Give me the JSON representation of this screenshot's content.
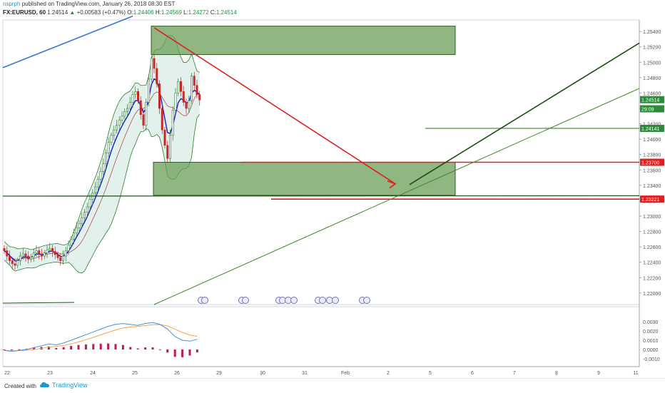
{
  "header": {
    "author": "nsprph",
    "published": " published on TradingView.com, January 26, 2018 08:30 EST",
    "symbol": "FX:EURUSD, 60",
    "last": "1.24514",
    "change": "+0.00583 (+0.47%)",
    "o_label": "O:",
    "o": "1.24406",
    "h_label": "H:",
    "h": "1.24569",
    "l_label": "L:",
    "l": "1.24272",
    "c_label": "C:",
    "c": "1.24514"
  },
  "footer": {
    "created": "Created with",
    "brand": "TradingView"
  },
  "colors": {
    "up": "#2e7d32",
    "down": "#c62828",
    "bb": "#2e7d32",
    "ma": "#1a1ad6",
    "zone": "#6b9e58",
    "red": "#e01e1e",
    "darkgreen": "#1b4d12",
    "green": "#3a8a26",
    "blue": "#3a74d8",
    "macd": "#4a90d9",
    "signal": "#f5a04a",
    "hist": "#c2185b",
    "label_green": "#2e8b3a"
  },
  "chart_data": [
    {
      "type": "candlestick",
      "title": "FX:EURUSD, 60",
      "x_ticks": [
        "22",
        "23",
        "24",
        "25",
        "26",
        "29",
        "30",
        "31",
        "Feb",
        "2",
        "5",
        "6",
        "7",
        "8",
        "9",
        "11"
      ],
      "y_ticks": [
        "1.25400",
        "1.25200",
        "1.25000",
        "1.24800",
        "1.24600",
        "1.24400",
        "1.24200",
        "1.24000",
        "1.23800",
        "1.23600",
        "1.23400",
        "1.23200",
        "1.23000",
        "1.22800",
        "1.22600",
        "1.22400",
        "1.22200",
        "1.22000"
      ],
      "ylim": [
        1.2185,
        1.2555
      ],
      "price_labels": [
        {
          "text": "1.24514",
          "value": 1.24514,
          "color": "#2e8b3a"
        },
        {
          "text": "29:09",
          "value": 1.24395,
          "color": "#2e8b3a"
        },
        {
          "text": "1.24141",
          "value": 1.24141,
          "color": "#2e8b3a"
        },
        {
          "text": "1.23700",
          "value": 1.237,
          "color": "#e01e1e"
        },
        {
          "text": "1.23221",
          "value": 1.23221,
          "color": "#e01e1e"
        }
      ],
      "series": [
        {
          "name": "close",
          "values": [
            1.2255,
            1.2248,
            1.2242,
            1.2238,
            1.2236,
            1.2242,
            1.2248,
            1.2251,
            1.2248,
            1.2244,
            1.2247,
            1.2252,
            1.2255,
            1.2251,
            1.2248,
            1.2252,
            1.2256,
            1.2258,
            1.2254,
            1.225,
            1.2246,
            1.2242,
            1.2248,
            1.2255,
            1.2262,
            1.227,
            1.2278,
            1.2285,
            1.229,
            1.2298,
            1.2305,
            1.2312,
            1.2322,
            1.233,
            1.2338,
            1.2348,
            1.2358,
            1.2368,
            1.2382,
            1.2396,
            1.2405,
            1.2412,
            1.2418,
            1.2425,
            1.243,
            1.2436,
            1.244,
            1.2448,
            1.2458,
            1.2462,
            1.245,
            1.2432,
            1.2418,
            1.2448,
            1.2478,
            1.2505,
            1.2492,
            1.2472,
            1.244,
            1.2412,
            1.2392,
            1.2375,
            1.2405,
            1.2438,
            1.246,
            1.2475,
            1.2462,
            1.2448,
            1.244,
            1.245,
            1.2482,
            1.247,
            1.2458,
            1.2451
          ]
        },
        {
          "name": "macd",
          "values": [
            -0.0001,
            -0.0002,
            -0.0001,
            0.0,
            0.0002,
            0.0004,
            0.0006,
            0.0005,
            0.0007,
            0.001,
            0.0013,
            0.0016,
            0.0019,
            0.0022,
            0.0025,
            0.0027,
            0.0028,
            0.0027,
            0.0026,
            0.0028,
            0.0029,
            0.0027,
            0.0022,
            0.0014,
            0.001,
            0.0009,
            0.0011
          ]
        }
      ]
    }
  ]
}
